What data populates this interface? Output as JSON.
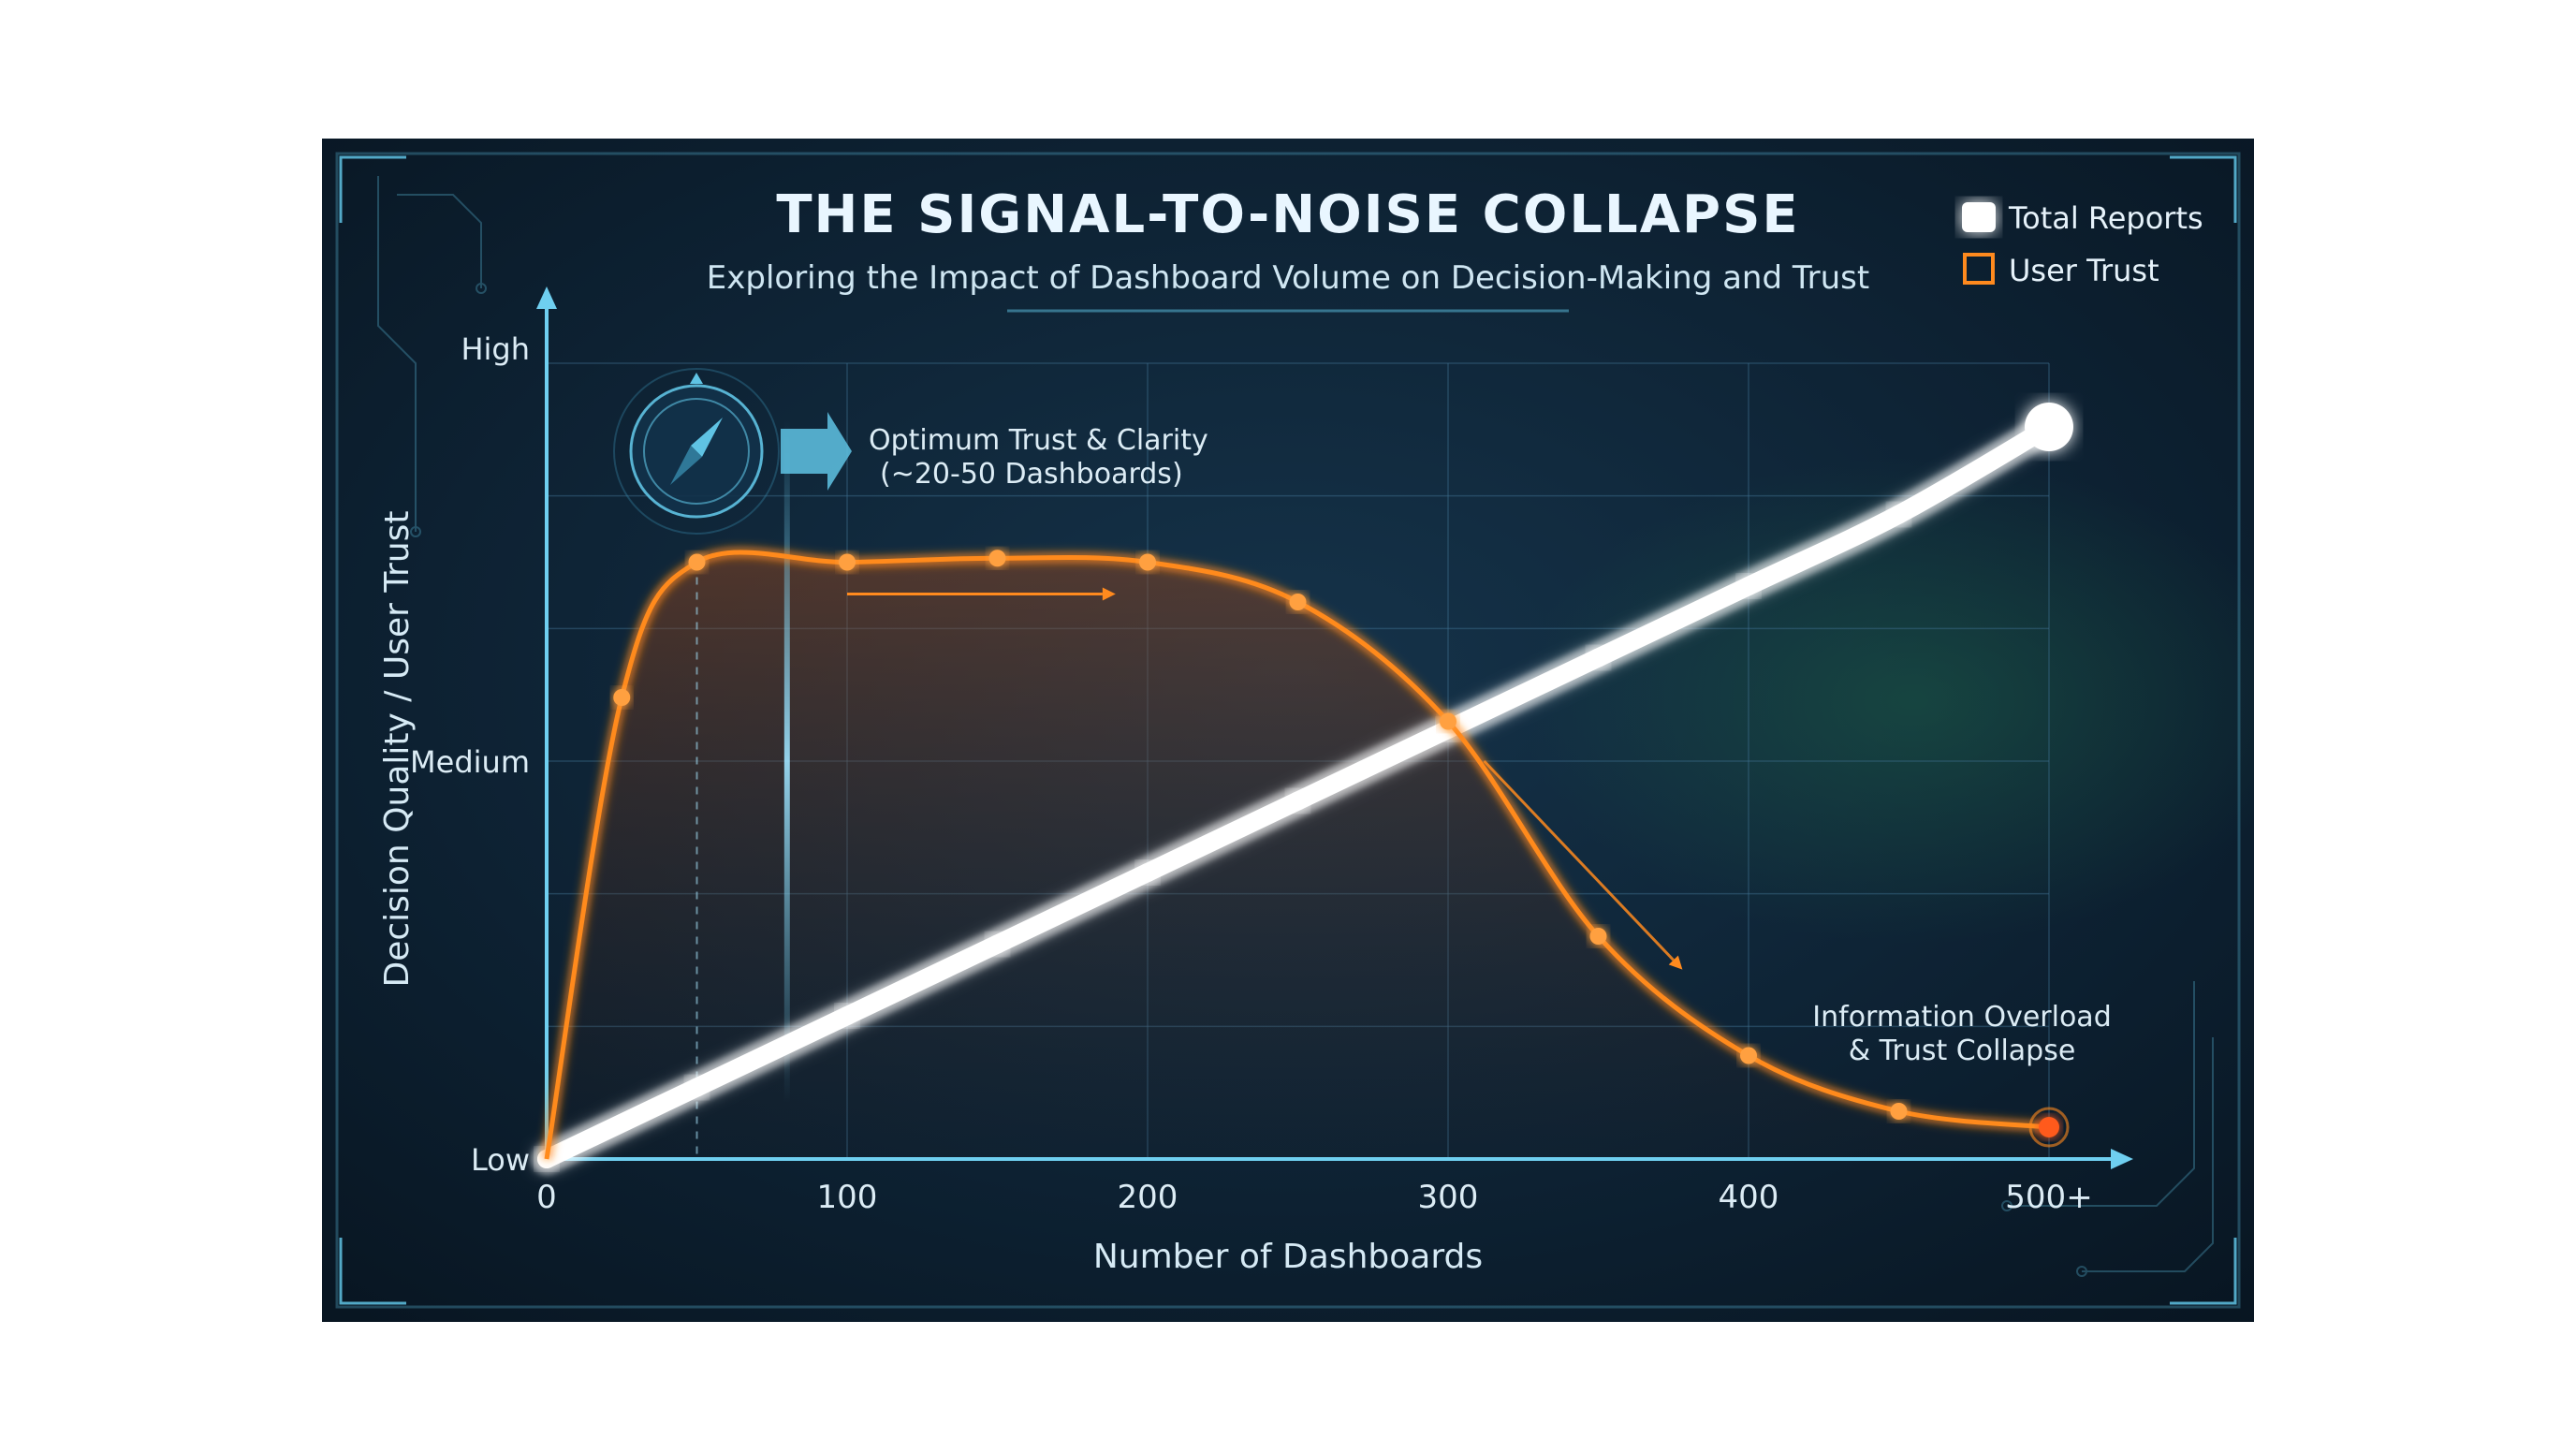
{
  "chart_data": {
    "type": "line",
    "title": "THE SIGNAL-TO-NOISE COLLAPSE",
    "subtitle": "Exploring the Impact of Dashboard Volume on Decision-Making and Trust",
    "xlabel": "Number of Dashboards",
    "ylabel": "Decision Quality / User Trust",
    "x_ticks": [
      "0",
      "100",
      "200",
      "300",
      "400",
      "500+"
    ],
    "y_ticks": [
      "Low",
      "Medium",
      "High"
    ],
    "xlim": [
      0,
      500
    ],
    "ylim": [
      0,
      100
    ],
    "grid": true,
    "legend_position": "top-right",
    "series": [
      {
        "name": "Total Reports",
        "color": "#ffffff",
        "x": [
          0,
          50,
          100,
          150,
          200,
          250,
          300,
          350,
          400,
          450,
          500
        ],
        "y": [
          0,
          9,
          18,
          27,
          36,
          45,
          54,
          63,
          72,
          81,
          92
        ]
      },
      {
        "name": "User Trust",
        "color": "#ff8a1e",
        "x": [
          0,
          25,
          50,
          100,
          150,
          200,
          250,
          300,
          350,
          400,
          450,
          500
        ],
        "y": [
          0,
          58,
          75,
          75,
          75.5,
          75,
          70,
          55,
          28,
          13,
          6,
          4
        ]
      }
    ],
    "annotations": [
      {
        "text": "Optimum Trust & Clarity\n(~20-50 Dashboards)",
        "icon": "compass-icon"
      },
      {
        "text": "Information Overload\n& Trust Collapse"
      }
    ]
  },
  "labels": {
    "title": "THE SIGNAL-TO-NOISE COLLAPSE",
    "subtitle": "Exploring the Impact of Dashboard Volume on Decision-Making and Trust",
    "xlabel": "Number of Dashboards",
    "ylabel": "Decision Quality / User Trust",
    "legend_total": "Total Reports",
    "legend_trust": "User Trust",
    "optimum_line1": "Optimum Trust & Clarity",
    "optimum_line2": "(~20-50 Dashboards)",
    "overload_line1": "Information Overload",
    "overload_line2": "& Trust Collapse"
  },
  "colors": {
    "panel_bg": "#0e2233",
    "accent_cyan": "#5fc3e4",
    "trust_orange": "#ff8a1e",
    "reports_white": "#ffffff"
  }
}
